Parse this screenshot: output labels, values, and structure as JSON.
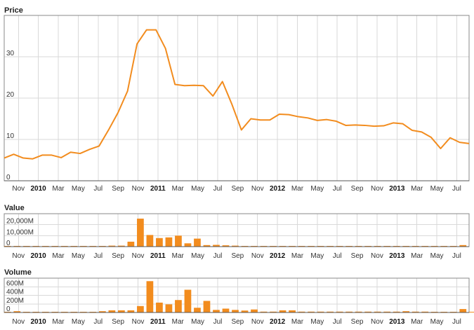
{
  "colors": {
    "series": "#f28c1e",
    "grid": "#d9d9d9",
    "frame": "#888888"
  },
  "x_labels": [
    {
      "label": "Nov",
      "year": false
    },
    {
      "label": "2010",
      "year": true
    },
    {
      "label": "Mar",
      "year": false
    },
    {
      "label": "May",
      "year": false
    },
    {
      "label": "Jul",
      "year": false
    },
    {
      "label": "Sep",
      "year": false
    },
    {
      "label": "Nov",
      "year": false
    },
    {
      "label": "2011",
      "year": true
    },
    {
      "label": "Mar",
      "year": false
    },
    {
      "label": "May",
      "year": false
    },
    {
      "label": "Jul",
      "year": false
    },
    {
      "label": "Sep",
      "year": false
    },
    {
      "label": "Nov",
      "year": false
    },
    {
      "label": "2012",
      "year": true
    },
    {
      "label": "Mar",
      "year": false
    },
    {
      "label": "May",
      "year": false
    },
    {
      "label": "Jul",
      "year": false
    },
    {
      "label": "Sep",
      "year": false
    },
    {
      "label": "Nov",
      "year": false
    },
    {
      "label": "2013",
      "year": true
    },
    {
      "label": "Mar",
      "year": false
    },
    {
      "label": "May",
      "year": false
    },
    {
      "label": "Jul",
      "year": false
    }
  ],
  "chart_data": [
    {
      "type": "line",
      "title": "Price",
      "ylim": [
        0,
        40
      ],
      "yticks": [
        0,
        10,
        20,
        30
      ],
      "x": [
        0,
        1,
        2,
        3,
        4,
        5,
        6,
        7,
        8,
        9,
        10,
        11,
        12,
        13,
        14,
        15,
        16,
        17,
        18,
        19,
        20,
        21,
        22,
        23,
        24,
        25,
        26,
        27,
        28,
        29,
        30,
        31,
        32,
        33,
        34,
        35,
        36,
        37,
        38,
        39,
        40,
        41,
        42,
        43,
        44,
        45,
        46,
        47,
        48,
        49
      ],
      "values": [
        5.5,
        6.4,
        5.5,
        5.3,
        6.2,
        6.2,
        5.6,
        6.9,
        6.6,
        7.6,
        8.4,
        12.3,
        16.5,
        21.7,
        33.1,
        36.5,
        36.5,
        32.0,
        23.3,
        23.0,
        23.1,
        23.0,
        20.5,
        24.0,
        18.5,
        12.3,
        15.0,
        14.7,
        14.7,
        16.1,
        16.0,
        15.5,
        15.2,
        14.6,
        14.8,
        14.4,
        13.4,
        13.5,
        13.4,
        13.2,
        13.3,
        14.0,
        13.8,
        12.2,
        11.8,
        10.5,
        7.8,
        10.4,
        9.3,
        9.0
      ],
      "grid": true
    },
    {
      "type": "bar",
      "title": "Value",
      "ylim": [
        0,
        30000
      ],
      "yticks": [
        0,
        10000,
        20000
      ],
      "ytick_labels": [
        "0",
        "10,000M",
        "20,000M"
      ],
      "values": [
        30,
        30,
        30,
        30,
        30,
        30,
        30,
        30,
        30,
        30,
        400,
        900,
        900,
        4500,
        25500,
        10600,
        7800,
        8400,
        10000,
        3000,
        7300,
        1400,
        1600,
        1200,
        900,
        600,
        300,
        300,
        600,
        300,
        200,
        200,
        300,
        300,
        200,
        100,
        300,
        300,
        300,
        200,
        100,
        200,
        400,
        200,
        100,
        100,
        100,
        100,
        1400,
        0
      ],
      "grid": true
    },
    {
      "type": "bar",
      "title": "Volume",
      "ylim": [
        0,
        800
      ],
      "yticks": [
        0,
        200,
        400,
        600
      ],
      "ytick_labels": [
        "0",
        "200M",
        "400M",
        "600M"
      ],
      "values": [
        10,
        30,
        15,
        15,
        15,
        15,
        15,
        15,
        15,
        15,
        30,
        50,
        50,
        50,
        150,
        730,
        230,
        190,
        290,
        530,
        110,
        270,
        60,
        90,
        60,
        45,
        70,
        20,
        20,
        50,
        50,
        20,
        20,
        20,
        20,
        20,
        20,
        20,
        20,
        20,
        20,
        20,
        30,
        20,
        20,
        10,
        10,
        10,
        80,
        10
      ],
      "grid": true
    }
  ]
}
